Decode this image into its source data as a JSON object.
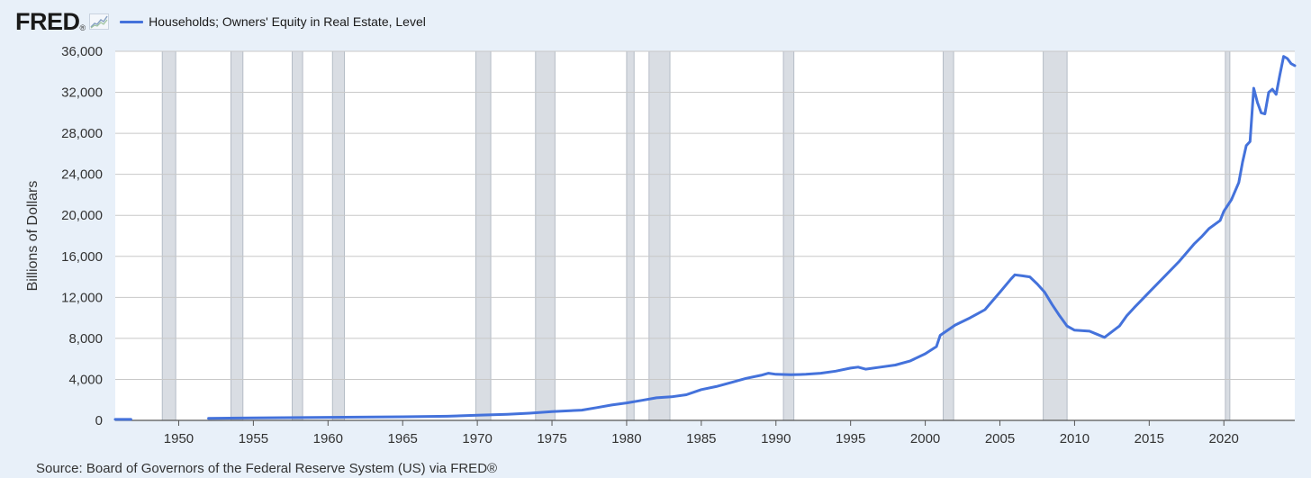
{
  "header": {
    "logo_text": "FRED",
    "logo_mark": "®",
    "legend_label": "Households; Owners' Equity in Real Estate, Level"
  },
  "footer": {
    "source": "Source: Board of Governors of the Federal Reserve System (US) via FRED®"
  },
  "chart_data": {
    "type": "line",
    "ylabel": "Billions of Dollars",
    "xlabel": "",
    "xlim": [
      1945.75,
      2024.75
    ],
    "ylim": [
      0,
      36000
    ],
    "y_ticks": [
      0,
      4000,
      8000,
      12000,
      16000,
      20000,
      24000,
      28000,
      32000,
      36000
    ],
    "y_tick_labels": [
      "0",
      "4,000",
      "8,000",
      "12,000",
      "16,000",
      "20,000",
      "24,000",
      "28,000",
      "32,000",
      "36,000"
    ],
    "x_ticks": [
      1950,
      1955,
      1960,
      1965,
      1970,
      1975,
      1980,
      1985,
      1990,
      1995,
      2000,
      2005,
      2010,
      2015,
      2020
    ],
    "x_tick_labels": [
      "1950",
      "1955",
      "1960",
      "1965",
      "1970",
      "1975",
      "1980",
      "1985",
      "1990",
      "1995",
      "2000",
      "2005",
      "2010",
      "2015",
      "2020"
    ],
    "grid": true,
    "line_color": "#4472db",
    "recession_color": "#d9dde3",
    "recessions": [
      [
        1948.9,
        1949.8
      ],
      [
        1953.5,
        1954.3
      ],
      [
        1957.6,
        1958.3
      ],
      [
        1960.3,
        1961.1
      ],
      [
        1969.9,
        1970.9
      ],
      [
        1973.9,
        1975.2
      ],
      [
        1980.0,
        1980.5
      ],
      [
        1981.5,
        1982.9
      ],
      [
        1990.5,
        1991.2
      ],
      [
        2001.2,
        2001.9
      ],
      [
        2007.9,
        2009.5
      ],
      [
        2020.1,
        2020.4
      ]
    ],
    "series": [
      {
        "x": [
          1945.75,
          1946.8
        ],
        "y": [
          100,
          100
        ]
      },
      {
        "x": [
          1952,
          1955,
          1960,
          1965,
          1968,
          1970,
          1972,
          1973.5,
          1975,
          1977,
          1978,
          1979,
          1980,
          1981,
          1982,
          1983,
          1984,
          1985,
          1986,
          1987,
          1988,
          1989,
          1989.5,
          1990,
          1991,
          1992,
          1993,
          1994,
          1995,
          1995.5,
          1996,
          1997,
          1998,
          1999,
          2000,
          2000.75,
          2001,
          2002,
          2003,
          2003.5,
          2004,
          2005,
          2005.75,
          2006,
          2006.5,
          2007,
          2007.5,
          2008,
          2008.5,
          2009,
          2009.5,
          2010,
          2011,
          2011.5,
          2012,
          2013,
          2013.5,
          2014,
          2015,
          2016,
          2017,
          2018,
          2018.5,
          2019,
          2019.75,
          2020,
          2020.5,
          2021,
          2021.25,
          2021.5,
          2021.75,
          2022,
          2022.25,
          2022.5,
          2022.75,
          2023,
          2023.25,
          2023.5,
          2023.75,
          2024,
          2024.25,
          2024.5,
          2024.75
        ],
        "y": [
          200,
          250,
          300,
          350,
          400,
          500,
          600,
          700,
          850,
          1000,
          1250,
          1500,
          1700,
          1950,
          2200,
          2300,
          2500,
          3000,
          3300,
          3700,
          4100,
          4400,
          4600,
          4500,
          4450,
          4500,
          4600,
          4800,
          5100,
          5200,
          5000,
          5200,
          5400,
          5800,
          6500,
          7200,
          8300,
          9300,
          10000,
          10400,
          10800,
          12500,
          13800,
          14200,
          14100,
          14000,
          13300,
          12500,
          11300,
          10200,
          9200,
          8800,
          8700,
          8400,
          8100,
          9200,
          10200,
          11000,
          12500,
          14000,
          15500,
          17200,
          17900,
          18700,
          19500,
          20400,
          21500,
          23200,
          25200,
          26800,
          27200,
          32400,
          31000,
          30000,
          29900,
          32000,
          32300,
          31800,
          33700,
          35500,
          35300,
          34800,
          34600
        ]
      }
    ]
  }
}
